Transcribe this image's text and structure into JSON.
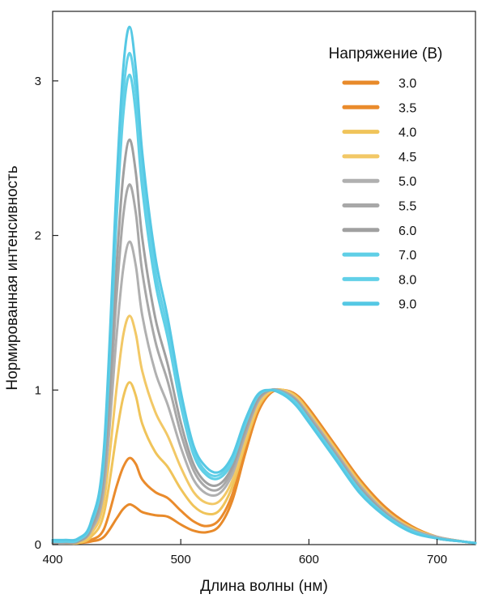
{
  "chart_data": {
    "type": "line",
    "title": "",
    "xlabel": "Длина волны (нм)",
    "ylabel": "Нормированная интенсивность",
    "xlim": [
      400,
      730
    ],
    "ylim": [
      0,
      3.45
    ],
    "x_ticks": [
      400,
      500,
      600,
      700
    ],
    "x_tick_labels": [
      "400",
      "500",
      "600",
      "700"
    ],
    "y_ticks": [
      0,
      1,
      2,
      3
    ],
    "y_tick_labels": [
      "0",
      "1",
      "2",
      "3"
    ],
    "grid": false,
    "legend": {
      "title": "Напряжение (В)",
      "position": "top-right"
    },
    "x": [
      400,
      410,
      420,
      430,
      440,
      450,
      455,
      460,
      465,
      470,
      480,
      490,
      500,
      510,
      520,
      530,
      540,
      550,
      560,
      570,
      580,
      590,
      600,
      620,
      640,
      660,
      680,
      700,
      720,
      730
    ],
    "series": [
      {
        "name": "3.0",
        "color": "#e88a2a",
        "values": [
          0.01,
          0.01,
          0.01,
          0.02,
          0.05,
          0.17,
          0.23,
          0.26,
          0.24,
          0.21,
          0.19,
          0.18,
          0.13,
          0.09,
          0.08,
          0.12,
          0.28,
          0.58,
          0.85,
          0.98,
          1.0,
          0.97,
          0.88,
          0.65,
          0.42,
          0.24,
          0.12,
          0.05,
          0.02,
          0.01
        ]
      },
      {
        "name": "3.5",
        "color": "#ea8b2c",
        "values": [
          0.01,
          0.01,
          0.01,
          0.03,
          0.1,
          0.38,
          0.5,
          0.56,
          0.52,
          0.42,
          0.34,
          0.3,
          0.22,
          0.15,
          0.12,
          0.16,
          0.32,
          0.61,
          0.86,
          0.98,
          1.0,
          0.96,
          0.87,
          0.64,
          0.41,
          0.23,
          0.11,
          0.05,
          0.02,
          0.01
        ]
      },
      {
        "name": "4.0",
        "color": "#f0c45a",
        "values": [
          0.01,
          0.01,
          0.01,
          0.05,
          0.2,
          0.72,
          0.95,
          1.05,
          0.96,
          0.78,
          0.6,
          0.5,
          0.36,
          0.25,
          0.2,
          0.22,
          0.37,
          0.64,
          0.88,
          0.99,
          1.0,
          0.96,
          0.86,
          0.63,
          0.4,
          0.22,
          0.11,
          0.05,
          0.02,
          0.01
        ]
      },
      {
        "name": "4.5",
        "color": "#f2c866",
        "values": [
          0.01,
          0.01,
          0.02,
          0.07,
          0.28,
          1.02,
          1.35,
          1.48,
          1.36,
          1.12,
          0.86,
          0.7,
          0.5,
          0.34,
          0.27,
          0.28,
          0.41,
          0.67,
          0.9,
          0.99,
          1.0,
          0.95,
          0.85,
          0.62,
          0.39,
          0.22,
          0.1,
          0.05,
          0.02,
          0.01
        ]
      },
      {
        "name": "5.0",
        "color": "#b0b0b0",
        "values": [
          0.01,
          0.01,
          0.02,
          0.09,
          0.36,
          1.36,
          1.78,
          1.96,
          1.8,
          1.48,
          1.12,
          0.9,
          0.63,
          0.42,
          0.33,
          0.33,
          0.45,
          0.7,
          0.92,
          1.0,
          0.99,
          0.94,
          0.84,
          0.61,
          0.38,
          0.21,
          0.1,
          0.05,
          0.02,
          0.01
        ]
      },
      {
        "name": "5.5",
        "color": "#a8a8a8",
        "values": [
          0.01,
          0.01,
          0.02,
          0.1,
          0.42,
          1.62,
          2.12,
          2.33,
          2.14,
          1.76,
          1.32,
          1.05,
          0.72,
          0.48,
          0.37,
          0.36,
          0.48,
          0.72,
          0.93,
          1.0,
          0.99,
          0.94,
          0.83,
          0.6,
          0.37,
          0.2,
          0.1,
          0.04,
          0.02,
          0.01
        ]
      },
      {
        "name": "6.0",
        "color": "#a0a0a0",
        "values": [
          0.01,
          0.01,
          0.02,
          0.11,
          0.47,
          1.82,
          2.38,
          2.62,
          2.4,
          1.98,
          1.47,
          1.16,
          0.79,
          0.52,
          0.4,
          0.39,
          0.5,
          0.74,
          0.94,
          1.0,
          0.98,
          0.93,
          0.82,
          0.59,
          0.36,
          0.2,
          0.09,
          0.04,
          0.02,
          0.01
        ]
      },
      {
        "name": "7.0",
        "color": "#5fcfe6",
        "values": [
          0.02,
          0.02,
          0.03,
          0.13,
          0.55,
          2.12,
          2.77,
          3.04,
          2.78,
          2.3,
          1.7,
          1.33,
          0.9,
          0.58,
          0.45,
          0.43,
          0.53,
          0.77,
          0.96,
          1.0,
          0.98,
          0.92,
          0.81,
          0.58,
          0.35,
          0.19,
          0.09,
          0.04,
          0.02,
          0.01
        ]
      },
      {
        "name": "8.0",
        "color": "#62d0e8",
        "values": [
          0.02,
          0.02,
          0.03,
          0.14,
          0.58,
          2.22,
          2.9,
          3.18,
          2.92,
          2.41,
          1.78,
          1.39,
          0.94,
          0.61,
          0.47,
          0.45,
          0.55,
          0.78,
          0.96,
          1.0,
          0.97,
          0.91,
          0.8,
          0.57,
          0.34,
          0.18,
          0.09,
          0.04,
          0.02,
          0.01
        ]
      },
      {
        "name": "9.0",
        "color": "#55c8e4",
        "values": [
          0.03,
          0.03,
          0.04,
          0.15,
          0.62,
          2.35,
          3.07,
          3.35,
          3.07,
          2.53,
          1.87,
          1.46,
          0.99,
          0.64,
          0.5,
          0.47,
          0.57,
          0.8,
          0.97,
          1.0,
          0.97,
          0.9,
          0.79,
          0.56,
          0.33,
          0.18,
          0.08,
          0.04,
          0.02,
          0.01
        ]
      }
    ]
  }
}
